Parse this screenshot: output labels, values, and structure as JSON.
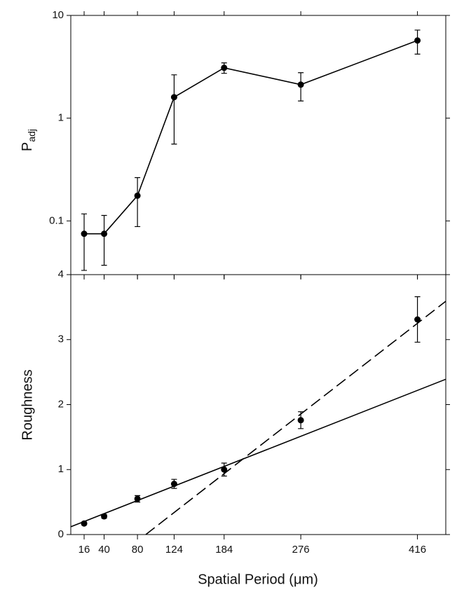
{
  "chart_data": [
    {
      "type": "line",
      "ylabel": "P",
      "ylabel_sub": "adj",
      "log_y": true,
      "x": [
        16,
        40,
        80,
        124,
        184,
        276,
        416
      ],
      "series": [
        {
          "color": "#000000",
          "values": [
            0.075,
            0.075,
            0.176,
            1.6,
            3.09,
            2.12,
            5.7
          ],
          "errors": [
            0.042,
            0.038,
            0.088,
            1.04,
            0.36,
            0.65,
            1.5
          ]
        }
      ],
      "xlim": [
        0,
        450
      ],
      "xticks": [
        16,
        40,
        80,
        124,
        184,
        276,
        416
      ],
      "ylim": [
        0.03,
        10
      ],
      "yticks": [
        0.1,
        1,
        10
      ]
    },
    {
      "type": "scatter",
      "ylabel": "Roughness",
      "xlabel": "Spatial Period (μm)",
      "x": [
        16,
        40,
        80,
        124,
        184,
        276,
        416
      ],
      "series": [
        {
          "color": "#000000",
          "values": [
            0.17,
            0.28,
            0.55,
            0.78,
            1.0,
            1.76,
            3.31
          ],
          "errors": [
            0.02,
            0.03,
            0.05,
            0.07,
            0.1,
            0.13,
            0.35
          ]
        }
      ],
      "fit_lines": [
        {
          "style": "solid",
          "x": [
            0,
            450
          ],
          "y": [
            0.12,
            2.39
          ]
        },
        {
          "style": "dashed",
          "x": [
            90,
            450
          ],
          "y": [
            0,
            3.59
          ]
        }
      ],
      "xlim": [
        0,
        450
      ],
      "xticks": [
        16,
        40,
        80,
        124,
        184,
        276,
        416
      ],
      "ylim": [
        0,
        4
      ],
      "yticks": [
        0,
        1,
        2,
        3,
        4
      ]
    }
  ]
}
